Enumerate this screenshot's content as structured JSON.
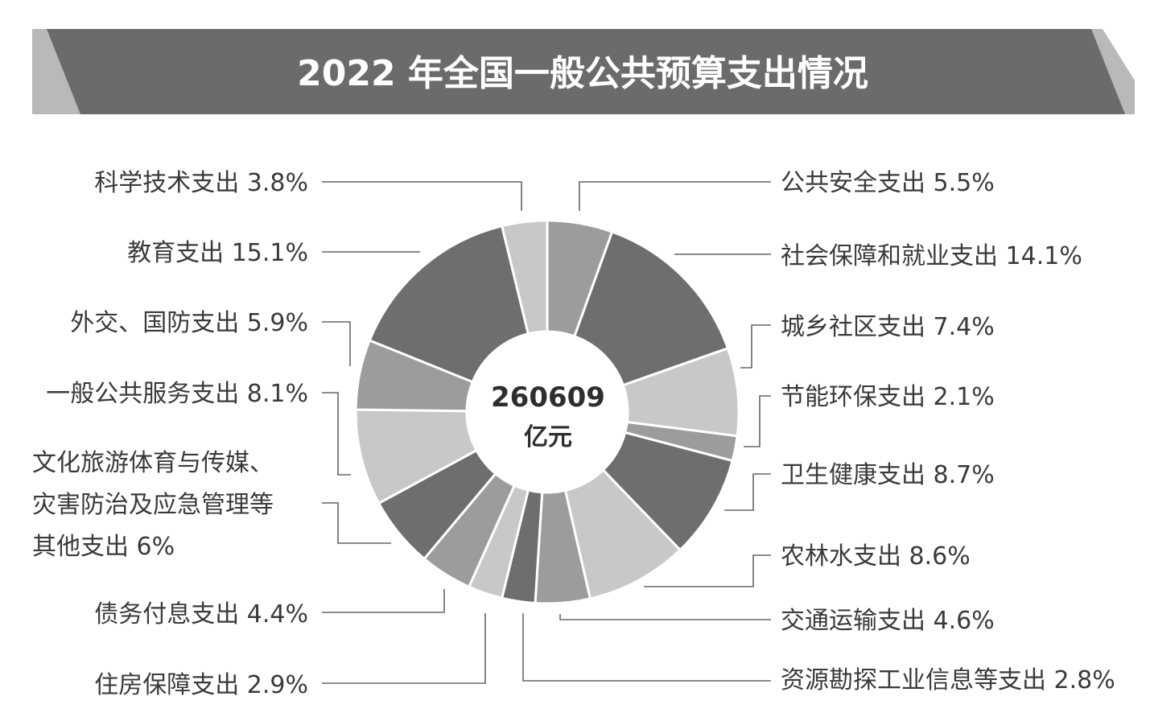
{
  "chart_data": {
    "type": "pie",
    "variant": "donut",
    "title": "2022 年全国一般公共预算支出情况",
    "center": {
      "value": "260609",
      "unit": "亿元"
    },
    "colors": {
      "dark": "#6e6e6e",
      "mid": "#9c9c9c",
      "light": "#c8c8c8",
      "banner": "#6b6b6b",
      "banner_edge": "#b9b9b9"
    },
    "slices": [
      {
        "label": "公共安全支出",
        "value": 5.5,
        "pct_text": "5.5%",
        "shade": "mid"
      },
      {
        "label": "社会保障和就业支出",
        "value": 14.1,
        "pct_text": "14.1%",
        "shade": "dark"
      },
      {
        "label": "城乡社区支出",
        "value": 7.4,
        "pct_text": "7.4%",
        "shade": "light"
      },
      {
        "label": "节能环保支出",
        "value": 2.1,
        "pct_text": "2.1%",
        "shade": "mid"
      },
      {
        "label": "卫生健康支出",
        "value": 8.7,
        "pct_text": "8.7%",
        "shade": "dark"
      },
      {
        "label": "农林水支出",
        "value": 8.6,
        "pct_text": "8.6%",
        "shade": "light"
      },
      {
        "label": "交通运输支出",
        "value": 4.6,
        "pct_text": "4.6%",
        "shade": "mid"
      },
      {
        "label": "资源勘探工业信息等支出",
        "value": 2.8,
        "pct_text": "2.8%",
        "shade": "dark"
      },
      {
        "label": "住房保障支出",
        "value": 2.9,
        "pct_text": "2.9%",
        "shade": "light"
      },
      {
        "label": "债务付息支出",
        "value": 4.4,
        "pct_text": "4.4%",
        "shade": "mid"
      },
      {
        "label": "文化旅游体育与传媒、灾害防治及应急管理等其他支出",
        "value": 6,
        "pct_text": "6%",
        "shade": "dark",
        "label_lines": [
          "文化旅游体育与传媒、",
          "灾害防治及应急管理等",
          "其他支出 6%"
        ]
      },
      {
        "label": "一般公共服务支出",
        "value": 8.1,
        "pct_text": "8.1%",
        "shade": "light"
      },
      {
        "label": "外交、国防支出",
        "value": 5.9,
        "pct_text": "5.9%",
        "shade": "mid"
      },
      {
        "label": "教育支出",
        "value": 15.1,
        "pct_text": "15.1%",
        "shade": "dark"
      },
      {
        "label": "科学技术支出",
        "value": 3.8,
        "pct_text": "3.8%",
        "shade": "light"
      }
    ]
  }
}
